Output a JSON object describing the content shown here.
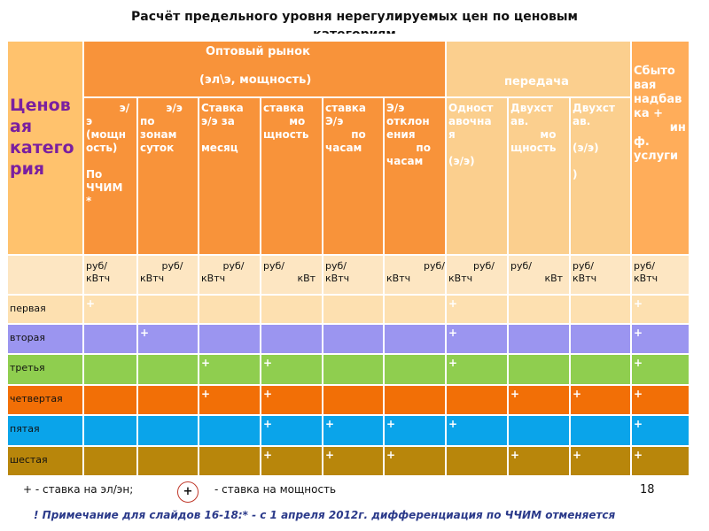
{
  "title_line1": "Расчёт предельного уровня  нерегулируемых цен по ценовым",
  "title_line2": "категориям",
  "header": {
    "category": "Ценов\nая\nкатего\nрия",
    "wholesale": "Оптовый рынок",
    "wholesale_sub": "(эл\\э, мощность)",
    "transmission": "передача",
    "sales": "Сбыто\nвая\nнадбав\nка +\n         ин\nф.\nуслуги"
  },
  "subheaders": [
    "         э/\nэ\n(мощн\nость)\n\nПо\nЧЧИМ\n*",
    "       э/э\nпо\nзонам\nсуток",
    "Ставка\nэ/э за\n\nмесяц",
    "ставка\n       мо\nщность",
    "ставка\nЭ/э\n       по\nчасам",
    "Э/э\nотклон\nения\n        по\nчасам",
    "Одност\nавочна\nя\n\n(э/э)",
    "Двухст\nав.\n        мо\nщность",
    "Двухст\nав.\n\n(э/э)\n\n)"
  ],
  "units": [
    "руб/\nкВтч",
    "       руб/\nкВтч",
    "       руб/\nкВтч",
    "руб/\n           кВт",
    "руб/\nкВтч",
    "            руб/\nкВтч",
    "        руб/\nкВтч",
    "руб/\n           кВт",
    "руб/\nкВтч",
    "руб/\nкВтч"
  ],
  "rows": [
    {
      "label": "первая",
      "color": "#fde0b0",
      "cells": [
        "+",
        "",
        "",
        "",
        "",
        "",
        "+",
        "",
        "",
        "+"
      ]
    },
    {
      "label": "вторая",
      "color": "#9b95f0",
      "cells": [
        "",
        "+",
        "",
        "",
        "",
        "",
        "+",
        "",
        "",
        "+"
      ]
    },
    {
      "label": "третья",
      "color": "#8fce4f",
      "cells": [
        "",
        "",
        "+",
        "+",
        "",
        "",
        "+",
        "",
        "",
        "+"
      ]
    },
    {
      "label": "четвертая",
      "color": "#f26f06",
      "cells": [
        "",
        "",
        "+",
        "+",
        "",
        "",
        "",
        "+",
        "+",
        "+"
      ]
    },
    {
      "label": "пятая",
      "color": "#0aa4ea",
      "cells": [
        "",
        "",
        "",
        "+",
        "+",
        "+",
        "+",
        "",
        "",
        "+"
      ]
    },
    {
      "label": "шестая",
      "color": "#b8860b",
      "cells": [
        "",
        "",
        "",
        "+",
        "+",
        "+",
        "",
        "+",
        "+",
        "+"
      ]
    }
  ],
  "legend": {
    "plus_energy": "+ - ставка на эл/эн;",
    "circle_symbol": "+",
    "plus_capacity": "- ставка на мощность"
  },
  "page_number": "18",
  "note": "! Примечание для слайдов 16-18:* - с 1 апреля 2012г. дифференциация по ЧЧИМ отменяется",
  "colors": {
    "category_header": "#ffc26d",
    "wholesale_header": "#f8933a",
    "transmission_header": "#fbcf8e",
    "sales_header": "#ffad5a",
    "units_row": "#fde6c2"
  }
}
